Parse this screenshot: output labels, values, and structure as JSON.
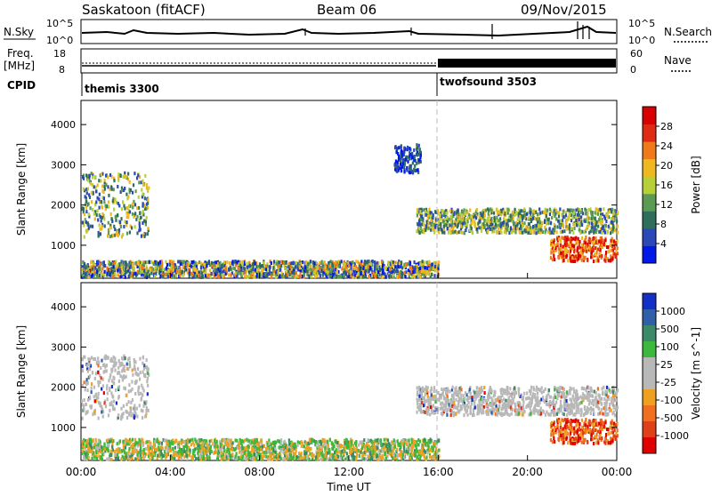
{
  "header": {
    "station": "Saskatoon (fitACF)",
    "beam": "Beam 06",
    "date": "09/Nov/2015"
  },
  "noise_panel": {
    "left_label": "N.Sky",
    "right_label": "N.Search",
    "left_ticks": [
      "10^5",
      "10^0"
    ],
    "right_ticks": [
      "10^5",
      "10^0"
    ]
  },
  "freq_panel": {
    "left_label_1": "Freq.",
    "left_label_2": "[MHz]",
    "right_label": "Nave",
    "left_ticks": [
      "18",
      "8"
    ],
    "right_ticks": [
      "60",
      "0"
    ]
  },
  "cpid": {
    "label": "CPID",
    "modes": [
      {
        "name": "themis 3300",
        "start_hour": 0
      },
      {
        "name": "twofsound 3503",
        "start_hour": 16
      }
    ]
  },
  "chart_data": [
    {
      "type": "heatmap",
      "parameter": "Power",
      "ylabel": "Slant Range [km]",
      "xlabel": "",
      "ylim": [
        180,
        4600
      ],
      "yticks": [
        1000,
        2000,
        3000,
        4000
      ],
      "colorbar": {
        "label": "Power [dB]",
        "ticks": [
          "4",
          "8",
          "12",
          "16",
          "20",
          "24",
          "28"
        ],
        "range": [
          0,
          30
        ],
        "colors": [
          "#0018e8",
          "#2a48b8",
          "#2f6e5a",
          "#5a9a52",
          "#b8d038",
          "#f0b820",
          "#f07a1a",
          "#e02a14",
          "#d80000"
        ]
      },
      "scatter_regions": [
        {
          "t_start": 0.0,
          "t_end": 16.0,
          "range_km": [
            200,
            600
          ],
          "level": "mixed"
        },
        {
          "t_start": 0.0,
          "t_end": 3.0,
          "range_km": [
            1200,
            2800
          ],
          "level": "medium"
        },
        {
          "t_start": 14.0,
          "t_end": 15.2,
          "range_km": [
            2800,
            3500
          ],
          "level": "low"
        },
        {
          "t_start": 15.0,
          "t_end": 24.0,
          "range_km": [
            1300,
            1900
          ],
          "level": "medium"
        },
        {
          "t_start": 21.0,
          "t_end": 24.0,
          "range_km": [
            600,
            1200
          ],
          "level": "high"
        }
      ]
    },
    {
      "type": "heatmap",
      "parameter": "Velocity",
      "ylabel": "Slant Range [km]",
      "xlabel": "Time UT",
      "ylim": [
        180,
        4600
      ],
      "yticks": [
        1000,
        2000,
        3000,
        4000
      ],
      "xticks": [
        "00:00",
        "04:00",
        "08:00",
        "12:00",
        "16:00",
        "20:00",
        "00:00"
      ],
      "colorbar": {
        "label": "Velocity [m s^-1]",
        "ticks": [
          "1000",
          "500",
          "100",
          "25",
          "-25",
          "-100",
          "-500",
          "-1000"
        ],
        "colors": [
          "#1030c8",
          "#2f5fa8",
          "#3a8a6a",
          "#3cb83c",
          "#b8b8b8",
          "#b8b8b8",
          "#f0a020",
          "#f07020",
          "#e04018",
          "#e00000"
        ]
      },
      "scatter_regions": [
        {
          "t_start": 0.0,
          "t_end": 16.0,
          "range_km": [
            200,
            700
          ],
          "velocity": "slow mixed"
        },
        {
          "t_start": 0.0,
          "t_end": 3.0,
          "range_km": [
            1200,
            2800
          ],
          "velocity": "near zero"
        },
        {
          "t_start": 15.0,
          "t_end": 24.0,
          "range_km": [
            1300,
            2000
          ],
          "velocity": "near zero"
        },
        {
          "t_start": 21.0,
          "t_end": 24.0,
          "range_km": [
            600,
            1200
          ],
          "velocity": "negative"
        }
      ]
    }
  ]
}
